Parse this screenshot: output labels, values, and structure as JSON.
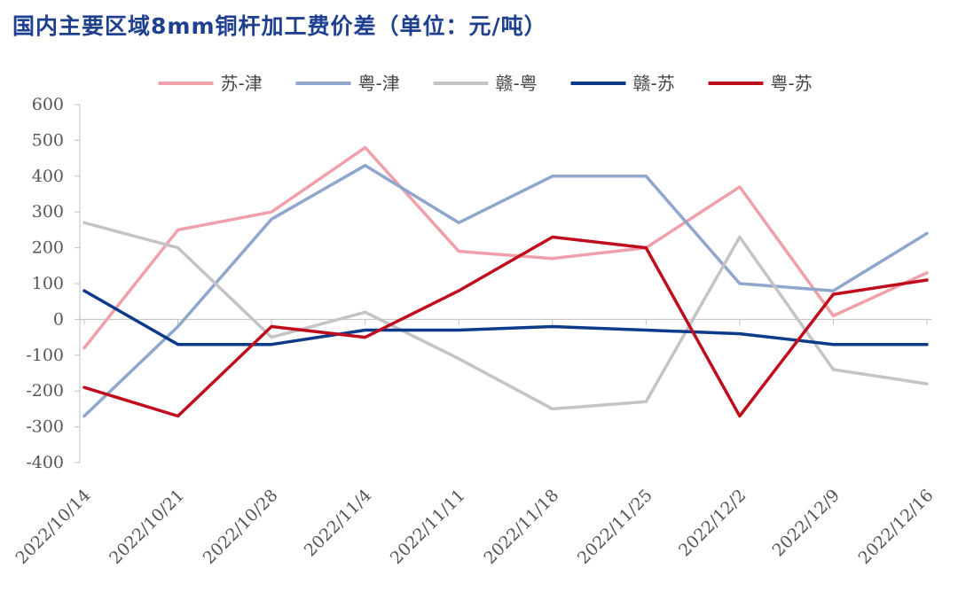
{
  "chart_data": {
    "type": "line",
    "title": "国内主要区域8mm铜杆加工费价差（单位：元/吨）",
    "categories": [
      "2022/10/14",
      "2022/10/21",
      "2022/10/28",
      "2022/11/4",
      "2022/11/11",
      "2022/11/18",
      "2022/11/25",
      "2022/12/2",
      "2022/12/9",
      "2022/12/16"
    ],
    "ylim": [
      -400,
      600
    ],
    "yticks": [
      600,
      500,
      400,
      300,
      200,
      100,
      0,
      -100,
      -200,
      -300,
      -400
    ],
    "ytick_labels": [
      "600",
      "500",
      "400",
      "300",
      "200",
      "100",
      "0",
      "-100",
      "-200",
      "-300",
      "-400"
    ],
    "grid": false,
    "legend_position": "top",
    "series": [
      {
        "name": "苏-津",
        "color": "#f0a0aa",
        "values": [
          -80,
          250,
          300,
          480,
          190,
          170,
          200,
          370,
          10,
          130
        ]
      },
      {
        "name": "粤-津",
        "color": "#8fa6cd",
        "values": [
          -270,
          -20,
          280,
          430,
          270,
          400,
          400,
          100,
          80,
          240
        ]
      },
      {
        "name": "赣-粤",
        "color": "#c4c4c4",
        "values": [
          270,
          200,
          -50,
          20,
          -110,
          -250,
          -230,
          230,
          -140,
          -180
        ]
      },
      {
        "name": "赣-苏",
        "color": "#0d3b8a",
        "values": [
          80,
          -70,
          -70,
          -30,
          -30,
          -20,
          -30,
          -40,
          -70,
          -70
        ]
      },
      {
        "name": "粤-苏",
        "color": "#c00d1e",
        "values": [
          -190,
          -270,
          -20,
          -50,
          80,
          230,
          200,
          -270,
          70,
          110
        ]
      }
    ]
  }
}
